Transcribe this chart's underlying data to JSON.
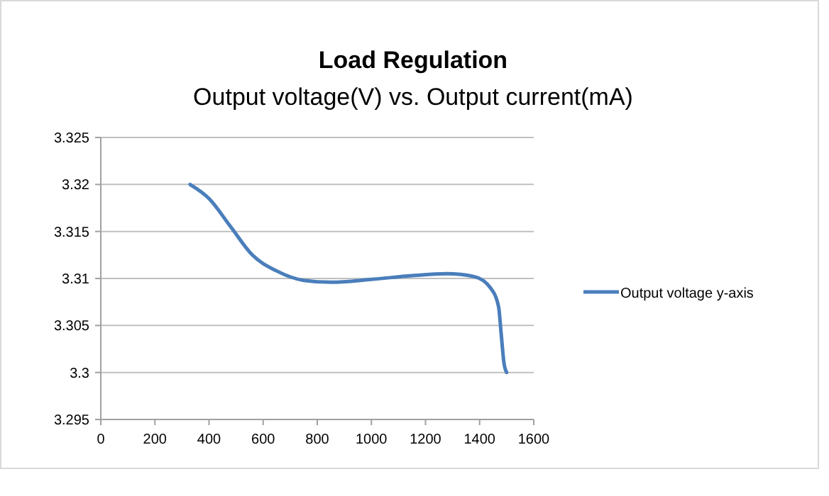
{
  "chart_data": {
    "type": "line",
    "title": "Load Regulation",
    "subtitle": "Output voltage(V) vs. Output current(mA)",
    "x": [
      330,
      400,
      480,
      560,
      650,
      750,
      850,
      1000,
      1150,
      1280,
      1380,
      1440,
      1470,
      1480,
      1490,
      1500
    ],
    "series": [
      {
        "name": "Output voltage y-axis",
        "color": "#4a7ebb",
        "values": [
          3.32,
          3.3185,
          3.3155,
          3.3125,
          3.3108,
          3.3098,
          3.3096,
          3.3099,
          3.3103,
          3.3105,
          3.3102,
          3.309,
          3.307,
          3.304,
          3.301,
          3.3
        ]
      }
    ],
    "xlim": [
      0,
      1600
    ],
    "xticks": [
      0,
      200,
      400,
      600,
      800,
      1000,
      1200,
      1400,
      1600
    ],
    "ylim": [
      3.295,
      3.325
    ],
    "yticks": [
      3.295,
      3.3,
      3.305,
      3.31,
      3.315,
      3.32,
      3.325
    ],
    "grid": "y",
    "legend": "right",
    "marker": "none",
    "line_style": "solid"
  }
}
